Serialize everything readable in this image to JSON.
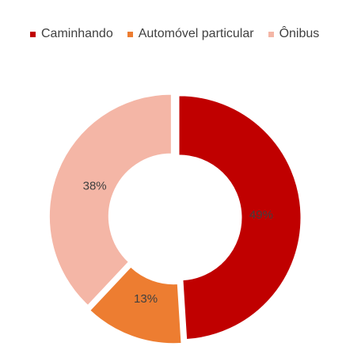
{
  "chart_data": {
    "type": "pie",
    "variant": "donut",
    "title": "",
    "legend_position": "top",
    "categories": [
      "Caminhando",
      "Automóvel particular",
      "Ônibus"
    ],
    "values": [
      49,
      13,
      38
    ],
    "data_labels": [
      "49%",
      "13%",
      "38%"
    ],
    "colors": [
      "#C00000",
      "#ED7D31",
      "#F4B6A6"
    ],
    "explode_fraction": 0.05
  }
}
